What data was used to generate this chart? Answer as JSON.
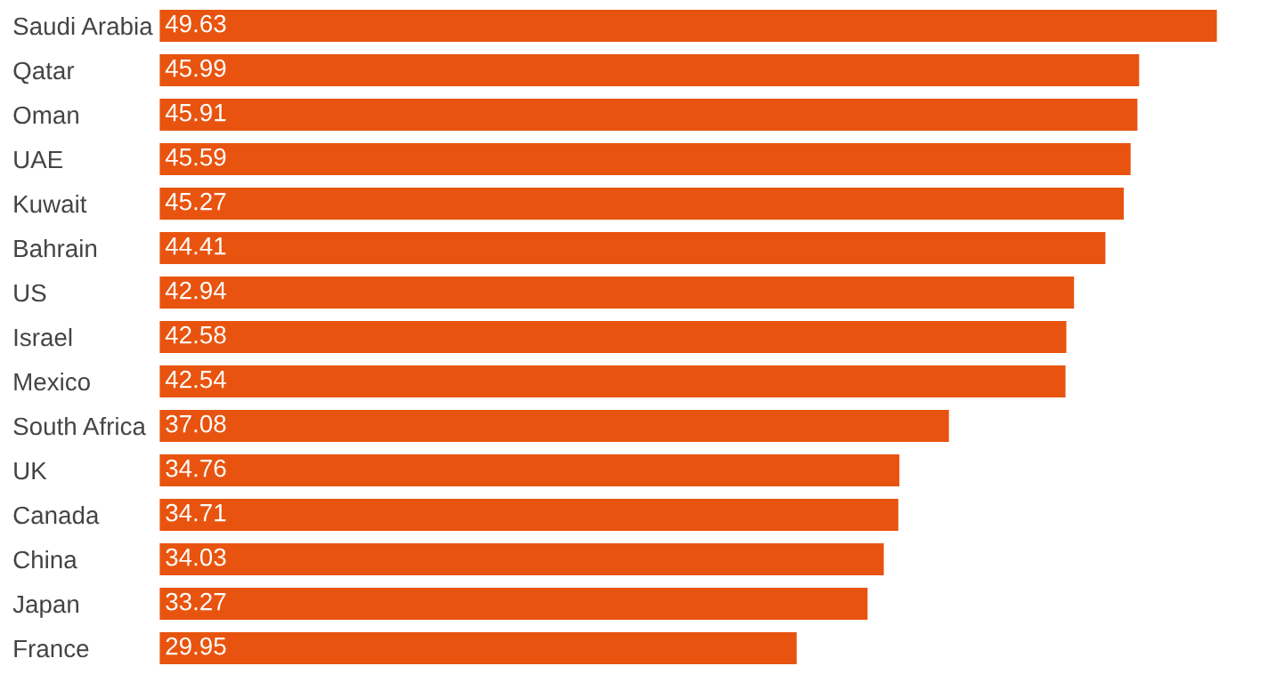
{
  "chart_data": {
    "type": "bar",
    "orientation": "horizontal",
    "categories": [
      "Saudi Arabia",
      "Qatar",
      "Oman",
      "UAE",
      "Kuwait",
      "Bahrain",
      "US",
      "Israel",
      "Mexico",
      "South Africa",
      "UK",
      "Canada",
      "China",
      "Japan",
      "France"
    ],
    "values": [
      49.63,
      45.99,
      45.91,
      45.59,
      45.27,
      44.41,
      42.94,
      42.58,
      42.54,
      37.08,
      34.76,
      34.71,
      34.03,
      33.27,
      29.95
    ],
    "color": "#e8540f",
    "data_labels": true,
    "grid": false,
    "legend": false,
    "tick_labels": "y"
  }
}
